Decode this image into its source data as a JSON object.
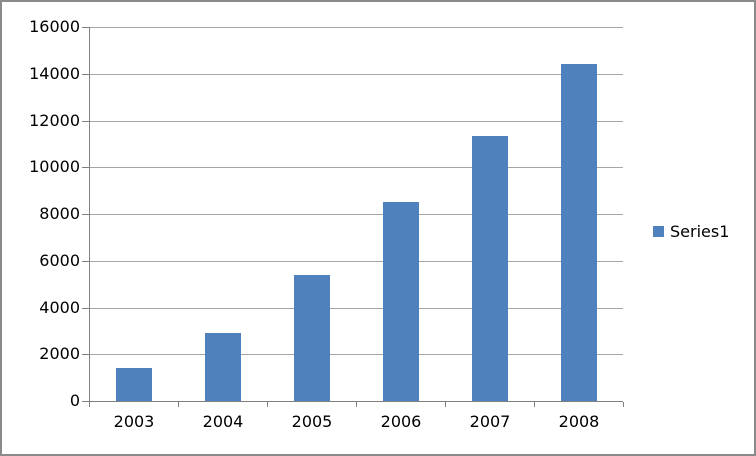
{
  "chart_data": {
    "type": "bar",
    "title": "",
    "categories": [
      "2003",
      "2004",
      "2005",
      "2006",
      "2007",
      "2008"
    ],
    "series": [
      {
        "name": "Series1",
        "color": "#4f81bd",
        "values": [
          1430,
          2900,
          5400,
          8500,
          11350,
          14400
        ]
      }
    ],
    "xlabel": "",
    "ylabel": "",
    "ylim": [
      0,
      16000
    ],
    "ytick_interval": 2000,
    "ytick_labels": [
      "0",
      "2000",
      "4000",
      "6000",
      "8000",
      "10000",
      "12000",
      "14000",
      "16000"
    ],
    "grid": true,
    "legend_position": "right",
    "colors": {
      "bar": "#4f81bd",
      "gridline": "#a6a6a6",
      "axis": "#808080",
      "text": "#000000",
      "background": "#ffffff",
      "frame_border": "#8a8a8a"
    }
  }
}
